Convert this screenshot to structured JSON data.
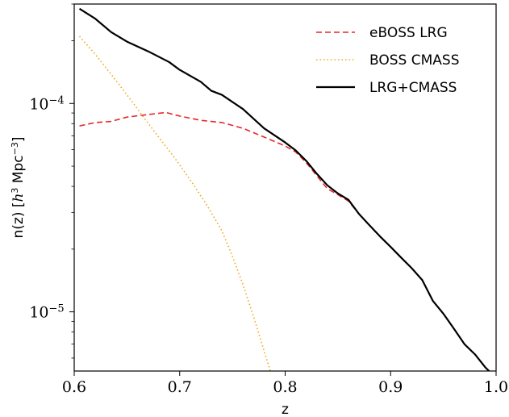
{
  "chart_data": {
    "type": "line",
    "xlabel": "z",
    "ylabel": {
      "prefix": "n(z) [",
      "var": "h",
      "var_exp": "3",
      "mid": " Mpc",
      "mid_exp": "−3",
      "suffix": "]"
    },
    "xlim": [
      0.6,
      1.0
    ],
    "ylim": [
      5.2e-06,
      0.0003
    ],
    "yscale": "log",
    "grid": false,
    "legend_position": "top-right",
    "xticks": [
      {
        "value": 0.6,
        "label": "0.6"
      },
      {
        "value": 0.7,
        "label": "0.7"
      },
      {
        "value": 0.8,
        "label": "0.8"
      },
      {
        "value": 0.9,
        "label": "0.9"
      },
      {
        "value": 1.0,
        "label": "1.0"
      }
    ],
    "yticks": [
      {
        "value": 1e-05,
        "base": "10",
        "exp": "−5"
      },
      {
        "value": 0.0001,
        "base": "10",
        "exp": "−4"
      }
    ],
    "yminor": [
      6e-06,
      7e-06,
      8e-06,
      9e-06,
      2e-05,
      3e-05,
      4e-05,
      5e-05,
      6e-05,
      7e-05,
      8e-05,
      9e-05,
      0.0002,
      0.0003
    ],
    "series": [
      {
        "name": "eBOSS LRG",
        "color": "#e8262a",
        "style": "dashed",
        "points": [
          [
            0.605,
            7.8e-05
          ],
          [
            0.62,
            8.1e-05
          ],
          [
            0.635,
            8.2e-05
          ],
          [
            0.65,
            8.6e-05
          ],
          [
            0.67,
            8.85e-05
          ],
          [
            0.687,
            9.05e-05
          ],
          [
            0.7,
            8.7e-05
          ],
          [
            0.72,
            8.3e-05
          ],
          [
            0.74,
            8.1e-05
          ],
          [
            0.76,
            7.6e-05
          ],
          [
            0.78,
            6.9e-05
          ],
          [
            0.8,
            6.25e-05
          ],
          [
            0.81,
            5.85e-05
          ],
          [
            0.82,
            5.2e-05
          ],
          [
            0.83,
            4.5e-05
          ],
          [
            0.84,
            3.9e-05
          ],
          [
            0.85,
            3.65e-05
          ],
          [
            0.86,
            3.4e-05
          ],
          [
            0.87,
            2.95e-05
          ],
          [
            0.88,
            2.6e-05
          ],
          [
            0.89,
            2.3e-05
          ],
          [
            0.9,
            2.05e-05
          ],
          [
            0.91,
            1.82e-05
          ],
          [
            0.92,
            1.62e-05
          ],
          [
            0.93,
            1.42e-05
          ],
          [
            0.94,
            1.13e-05
          ],
          [
            0.95,
            9.8e-06
          ],
          [
            0.96,
            8.3e-06
          ],
          [
            0.97,
            7e-06
          ],
          [
            0.98,
            6.25e-06
          ],
          [
            0.99,
            5.4e-06
          ],
          [
            0.995,
            5.1e-06
          ]
        ]
      },
      {
        "name": "BOSS CMASS",
        "color": "#f0a818",
        "style": "dotted",
        "points": [
          [
            0.605,
            0.00021
          ],
          [
            0.62,
            0.000172
          ],
          [
            0.635,
            0.000138
          ],
          [
            0.65,
            0.00011
          ],
          [
            0.665,
            8.7e-05
          ],
          [
            0.68,
            6.9e-05
          ],
          [
            0.695,
            5.5e-05
          ],
          [
            0.71,
            4.3e-05
          ],
          [
            0.725,
            3.3e-05
          ],
          [
            0.74,
            2.45e-05
          ],
          [
            0.75,
            1.85e-05
          ],
          [
            0.76,
            1.35e-05
          ],
          [
            0.77,
            9.5e-06
          ],
          [
            0.78,
            6.5e-06
          ],
          [
            0.787,
            5e-06
          ]
        ]
      },
      {
        "name": "LRG+CMASS",
        "color": "#000000",
        "style": "solid",
        "points": [
          [
            0.605,
            0.000285
          ],
          [
            0.62,
            0.000255
          ],
          [
            0.635,
            0.00022
          ],
          [
            0.65,
            0.000198
          ],
          [
            0.67,
            0.000178
          ],
          [
            0.69,
            0.000158
          ],
          [
            0.7,
            0.000145
          ],
          [
            0.72,
            0.000127
          ],
          [
            0.73,
            0.000115
          ],
          [
            0.74,
            0.00011
          ],
          [
            0.76,
            9.4e-05
          ],
          [
            0.78,
            7.6e-05
          ],
          [
            0.8,
            6.5e-05
          ],
          [
            0.81,
            5.95e-05
          ],
          [
            0.82,
            5.3e-05
          ],
          [
            0.83,
            4.6e-05
          ],
          [
            0.84,
            4.05e-05
          ],
          [
            0.85,
            3.7e-05
          ],
          [
            0.86,
            3.45e-05
          ],
          [
            0.87,
            2.95e-05
          ],
          [
            0.88,
            2.6e-05
          ],
          [
            0.89,
            2.3e-05
          ],
          [
            0.9,
            2.05e-05
          ],
          [
            0.91,
            1.82e-05
          ],
          [
            0.92,
            1.62e-05
          ],
          [
            0.93,
            1.42e-05
          ],
          [
            0.94,
            1.13e-05
          ],
          [
            0.95,
            9.8e-06
          ],
          [
            0.96,
            8.3e-06
          ],
          [
            0.97,
            7e-06
          ],
          [
            0.98,
            6.25e-06
          ],
          [
            0.99,
            5.4e-06
          ],
          [
            0.995,
            5.1e-06
          ]
        ]
      }
    ]
  }
}
